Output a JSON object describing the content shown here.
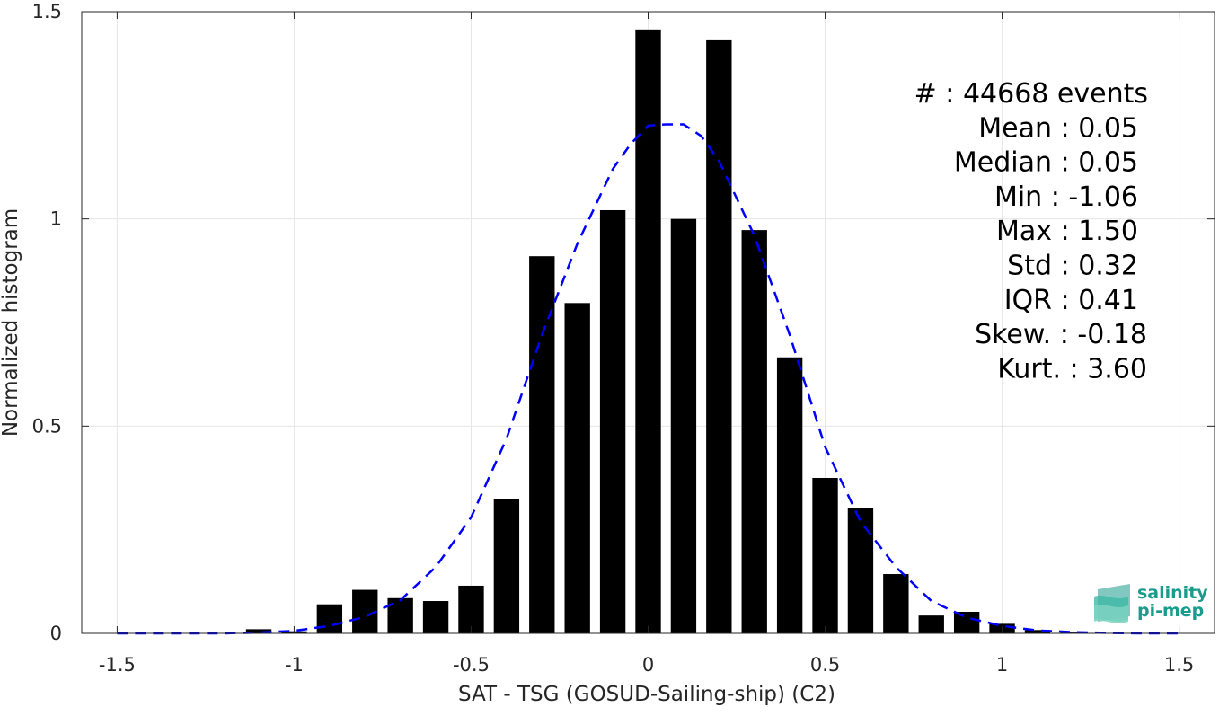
{
  "chart_data": {
    "type": "bar",
    "xlabel": "SAT - TSG (GOSUD-Sailing-ship) (C2)",
    "ylabel": "Normalized histogram",
    "xlim": [
      -1.6,
      1.6
    ],
    "ylim": [
      0,
      1.5
    ],
    "x_ticks": [
      -1.5,
      -1,
      -0.5,
      0,
      0.5,
      1,
      1.5
    ],
    "x_tick_labels": [
      "-1.5",
      "-1",
      "-0.5",
      "0",
      "0.5",
      "1",
      "1.5"
    ],
    "y_ticks": [
      0,
      0.5,
      1,
      1.5
    ],
    "y_tick_labels": [
      "0",
      "0.5",
      "1",
      "1.5"
    ],
    "grid": true,
    "bar_color": "#000000",
    "bin_width": 0.1,
    "bar_width": 0.072,
    "bars": {
      "x": [
        -1.1,
        -1.0,
        -0.9,
        -0.8,
        -0.7,
        -0.6,
        -0.5,
        -0.4,
        -0.3,
        -0.2,
        -0.1,
        0.0,
        0.1,
        0.2,
        0.3,
        0.4,
        0.5,
        0.6,
        0.7,
        0.8,
        0.9,
        1.0,
        1.1,
        1.2
      ],
      "values": [
        0.01,
        0.005,
        0.07,
        0.105,
        0.085,
        0.078,
        0.115,
        0.323,
        0.91,
        0.797,
        1.021,
        1.457,
        1.0,
        1.433,
        0.973,
        0.666,
        0.375,
        0.303,
        0.143,
        0.043,
        0.052,
        0.023,
        0.008,
        0.002
      ]
    },
    "fit_line": {
      "style": "dashed",
      "color": "#0000ff",
      "x": [
        -1.5,
        -1.4,
        -1.3,
        -1.2,
        -1.1,
        -1.0,
        -0.9,
        -0.8,
        -0.7,
        -0.6,
        -0.5,
        -0.4,
        -0.3,
        -0.2,
        -0.1,
        -0.05,
        0.0,
        0.05,
        0.1,
        0.15,
        0.2,
        0.3,
        0.4,
        0.5,
        0.6,
        0.7,
        0.8,
        0.9,
        1.0,
        1.1,
        1.2,
        1.3,
        1.4,
        1.5
      ],
      "values": [
        0.0,
        0.0,
        0.0,
        0.0,
        0.002,
        0.006,
        0.018,
        0.04,
        0.08,
        0.16,
        0.28,
        0.47,
        0.72,
        0.94,
        1.12,
        1.18,
        1.225,
        1.228,
        1.228,
        1.2,
        1.14,
        0.96,
        0.72,
        0.45,
        0.27,
        0.16,
        0.078,
        0.038,
        0.018,
        0.007,
        0.003,
        0.001,
        0.0,
        0.0
      ]
    },
    "stats": [
      {
        "label": "#",
        "sep": " : ",
        "value": "44668 events"
      },
      {
        "label": "Mean",
        "sep": " : ",
        "value": "0.05"
      },
      {
        "label": "Median",
        "sep": " : ",
        "value": "0.05"
      },
      {
        "label": "Min",
        "sep": " : ",
        "value": "-1.06"
      },
      {
        "label": "Max",
        "sep": " : ",
        "value": "1.50"
      },
      {
        "label": "Std",
        "sep": " : ",
        "value": "0.32"
      },
      {
        "label": "IQR",
        "sep": " : ",
        "value": "0.41"
      },
      {
        "label": "Skew.",
        "sep": " : ",
        "value": "-0.18"
      },
      {
        "label": "Kurt.",
        "sep": " : ",
        "value": "3.60"
      }
    ]
  },
  "logo": {
    "line1": "salinity",
    "line2": "pi-mep",
    "color": "#1a9c8c"
  }
}
